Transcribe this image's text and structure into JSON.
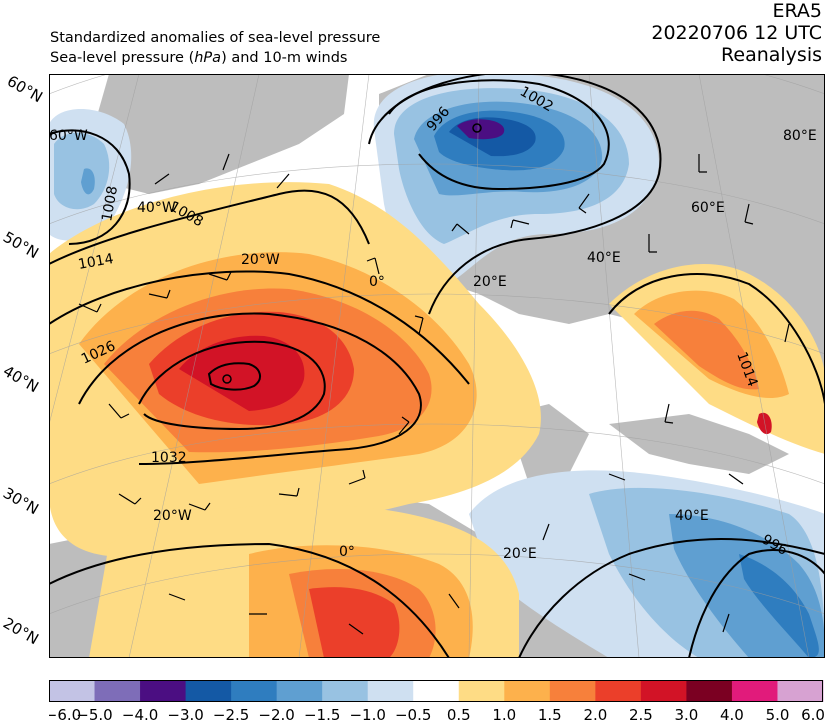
{
  "header": {
    "title_line1": "Standardized anomalies of sea-level pressure",
    "title_line2_pre": "Sea-level pressure (",
    "title_line2_unit": "hPa",
    "title_line2_post": ") and 10-m winds",
    "dataset": "ERA5",
    "datetime": "20220706 12 UTC",
    "product": "Reanalysis"
  },
  "colors": {
    "land": "#bdbdbd",
    "ocean": "#ffffff",
    "neg": [
      "#c3c3e5",
      "#7e6db8",
      "#4b0e82",
      "#1459a5",
      "#2f7dbf",
      "#5f9fd1",
      "#98c2e2",
      "#cfe0f1"
    ],
    "zero": "#ffffff",
    "pos": [
      "#fedc85",
      "#fdb14c",
      "#f7803b",
      "#eb3f2a",
      "#d21326",
      "#7b0022",
      "#e11b7b",
      "#d7a2d2"
    ]
  },
  "map": {
    "lat_labels": [
      "60°N",
      "50°N",
      "40°N",
      "30°N",
      "20°N"
    ],
    "lon_labels": [
      "60°W",
      "40°W",
      "20°W",
      "0°",
      "20°E",
      "40°E",
      "60°E",
      "80°E",
      "20°W",
      "0°",
      "20°E",
      "40°E"
    ],
    "isobar_labels": [
      "1008",
      "1008",
      "1014",
      "1026",
      "1032",
      "996",
      "1002",
      "1014",
      "996"
    ],
    "highs": [
      "H1"
    ],
    "lows": [
      "L1"
    ]
  },
  "colorbar": {
    "ticks": [
      "−6.0",
      "−5.0",
      "−4.0",
      "−3.0",
      "−2.5",
      "−2.0",
      "−1.5",
      "−1.0",
      "−0.5",
      "0.5",
      "1.0",
      "1.5",
      "2.0",
      "2.5",
      "3.0",
      "4.0",
      "5.0",
      "6.0"
    ]
  }
}
